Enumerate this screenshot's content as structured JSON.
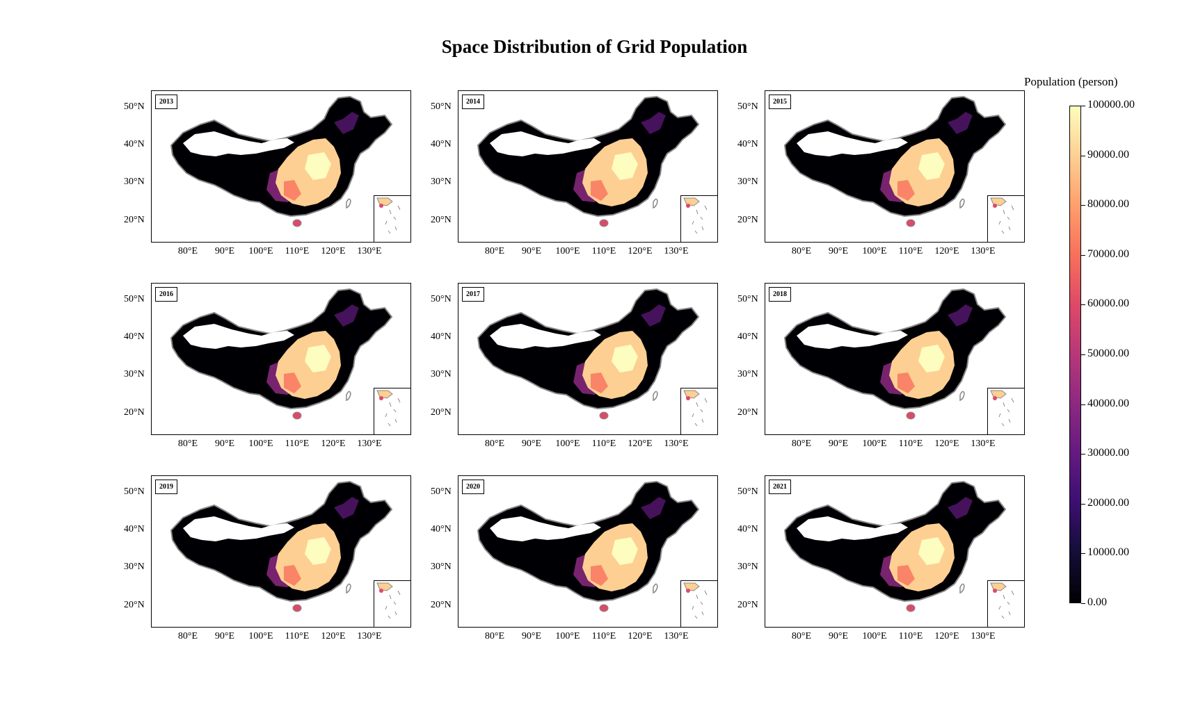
{
  "title": "Space Distribution of Grid Population",
  "colorbar": {
    "title": "Population (person)",
    "labels": [
      "100000.00",
      "90000.00",
      "80000.00",
      "70000.00",
      "60000.00",
      "50000.00",
      "40000.00",
      "30000.00",
      "20000.00",
      "10000.00",
      "0.00"
    ],
    "min": 0,
    "max": 100000,
    "colormap": "magma"
  },
  "axes": {
    "lat_labels": [
      "50°N",
      "40°N",
      "30°N",
      "20°N"
    ],
    "lon_labels": [
      "80°E",
      "90°E",
      "100°E",
      "110°E",
      "120°E",
      "130°E"
    ]
  },
  "panels": [
    {
      "year": "2013"
    },
    {
      "year": "2014"
    },
    {
      "year": "2015"
    },
    {
      "year": "2016"
    },
    {
      "year": "2017"
    },
    {
      "year": "2018"
    },
    {
      "year": "2019"
    },
    {
      "year": "2020"
    },
    {
      "year": "2021"
    }
  ],
  "colors": {
    "low": "#000004",
    "mid": "#8c2981",
    "high": "#fcfdbf",
    "border": "#888888"
  }
}
